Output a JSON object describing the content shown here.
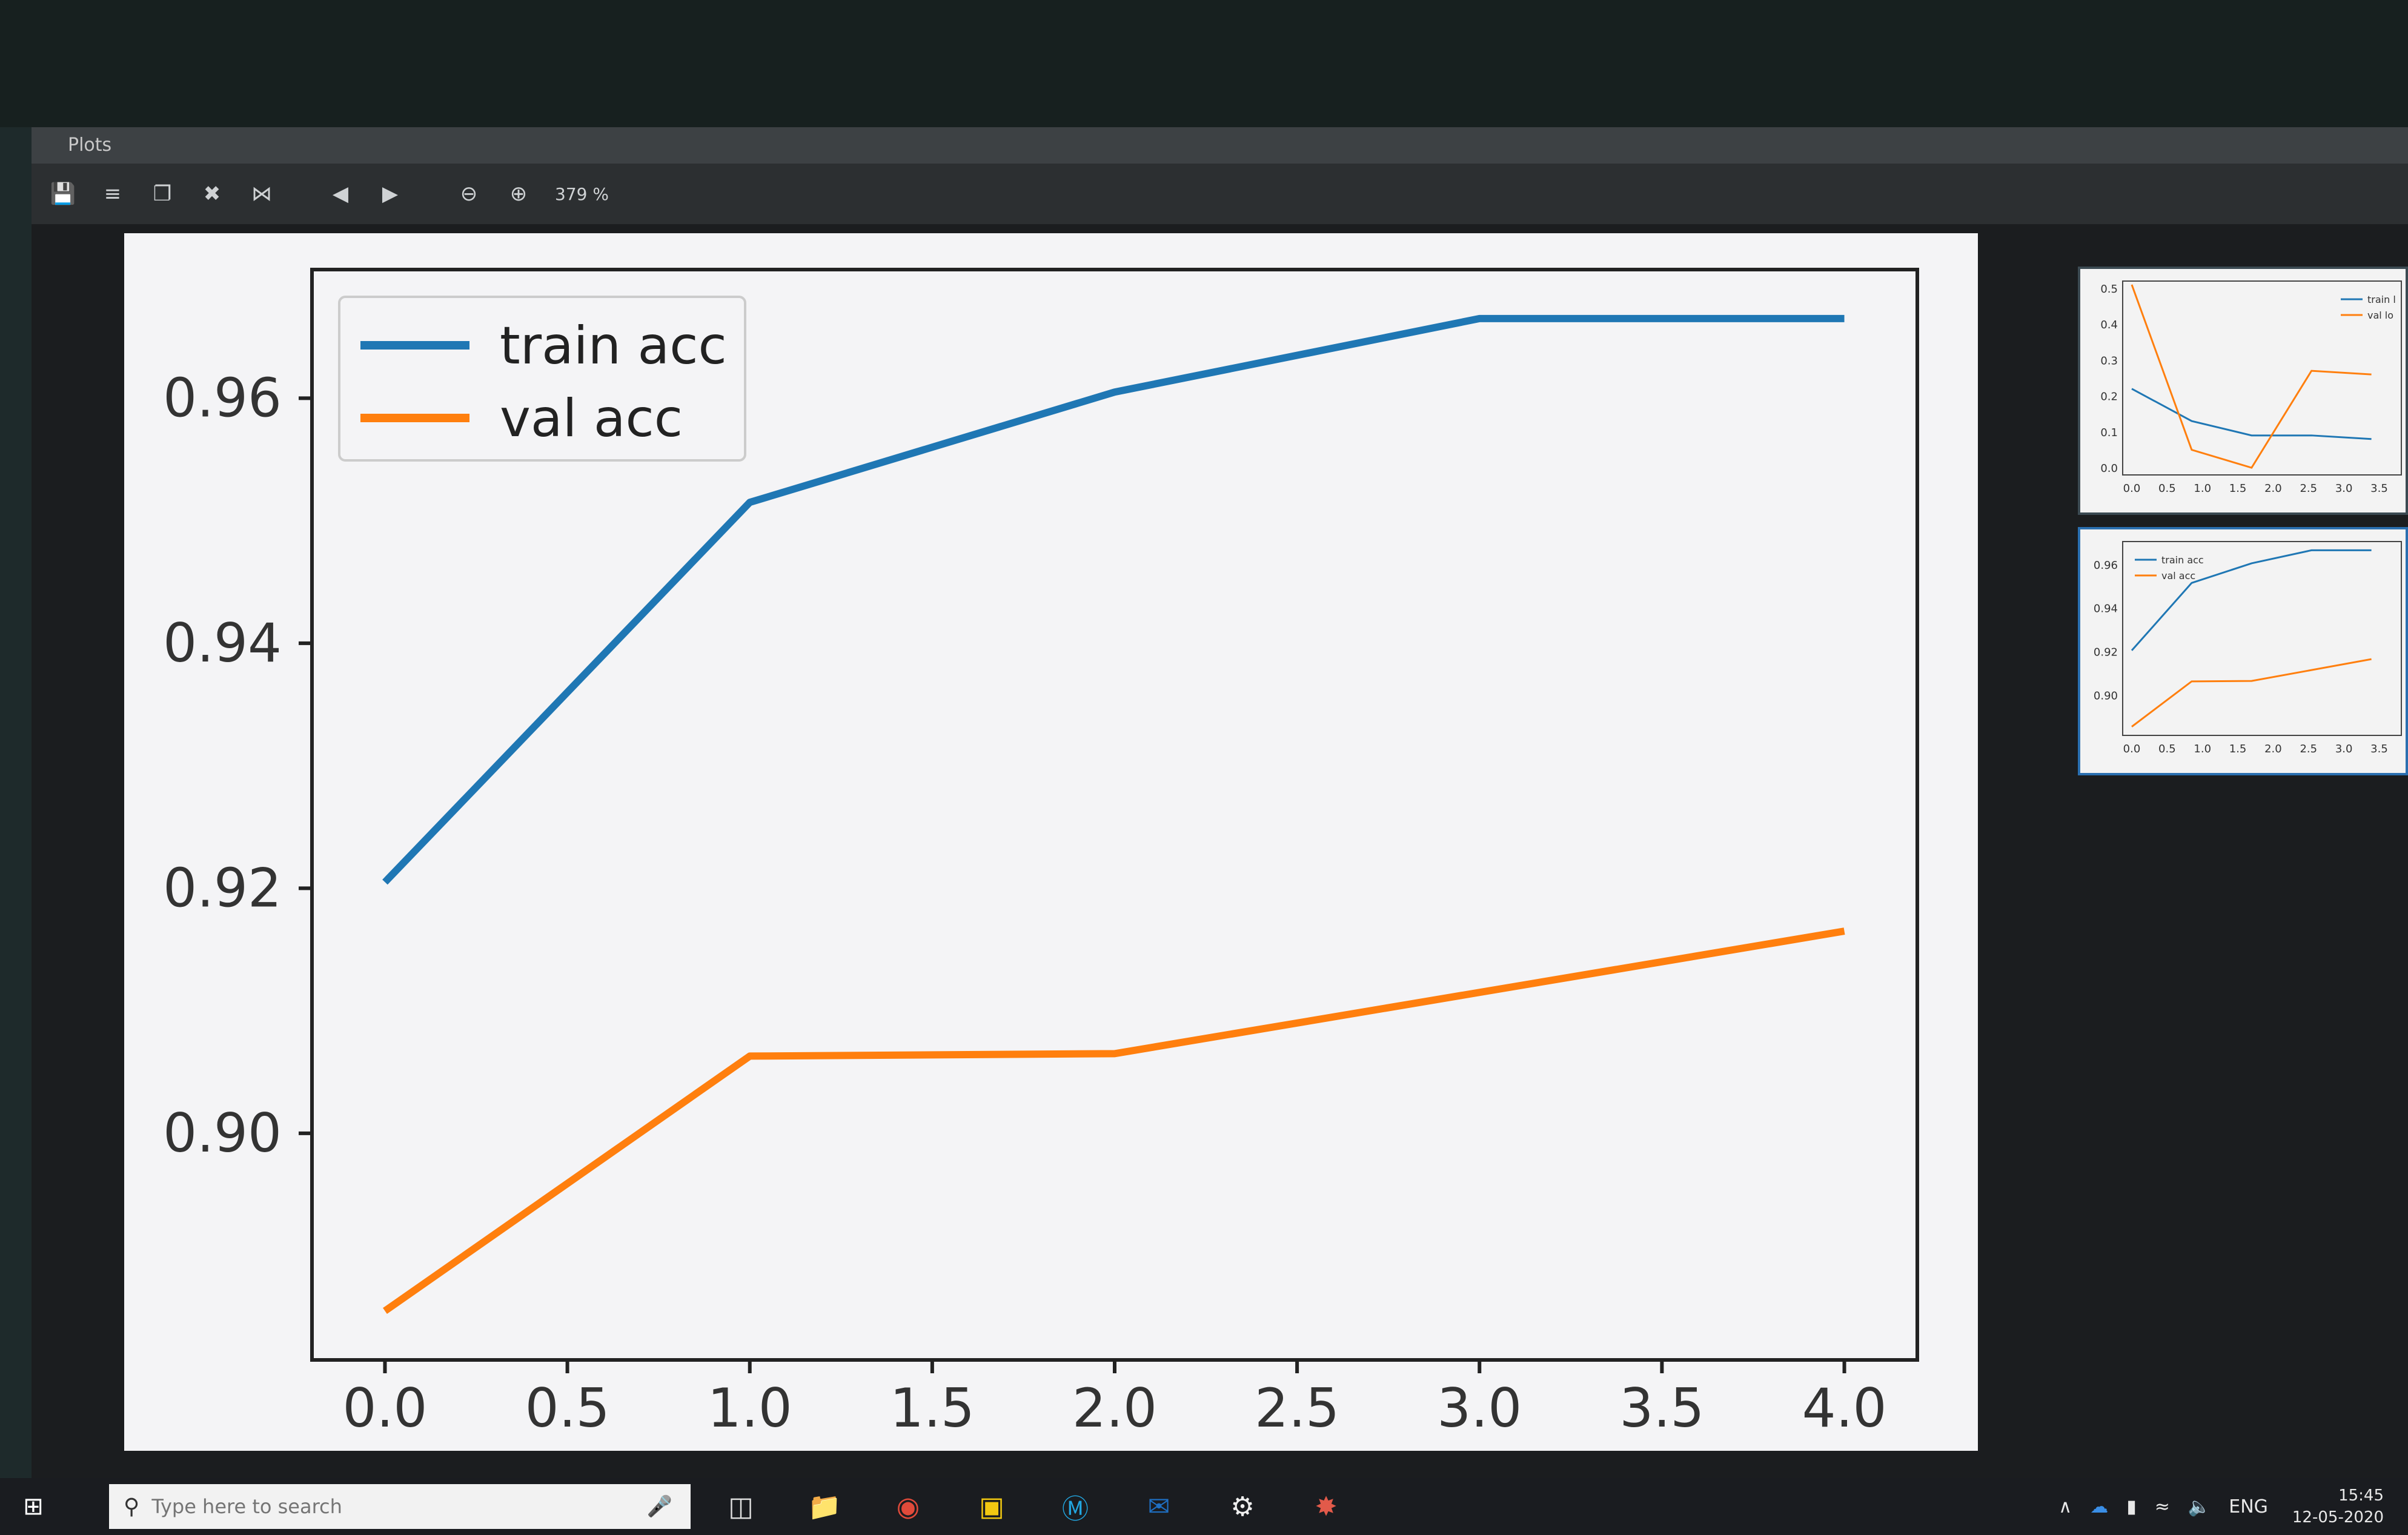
{
  "window": {
    "title": "Plots",
    "toolbar": {
      "save_icon": "floppy-disk-icon",
      "save_all_icon": "save-all-icon",
      "copy_icon": "copy-icon",
      "close_icon": "close-x-icon",
      "close_all_icon": "close-all-icon",
      "prev_icon": "arrow-left-circle-icon",
      "next_icon": "arrow-right-circle-icon",
      "zoom_out_icon": "zoom-out-icon",
      "zoom_in_icon": "zoom-in-icon",
      "zoom_level": "379 %"
    }
  },
  "chart_data": [
    {
      "type": "line",
      "x": [
        0.0,
        1.0,
        2.0,
        3.0,
        4.0
      ],
      "series": [
        {
          "name": "train acc",
          "color": "#1f77b4",
          "values": [
            0.9205,
            0.9515,
            0.9605,
            0.9665,
            0.9665
          ]
        },
        {
          "name": "val acc",
          "color": "#ff7f0e",
          "values": [
            0.8855,
            0.9063,
            0.9065,
            0.9115,
            0.9165
          ]
        }
      ],
      "xticks": [
        "0.0",
        "0.5",
        "1.0",
        "1.5",
        "2.0",
        "2.5",
        "3.0",
        "3.5",
        "4.0"
      ],
      "yticks": [
        "0.90",
        "0.92",
        "0.94",
        "0.96"
      ],
      "xlim": [
        -0.2,
        4.2
      ],
      "ylim": [
        0.8815,
        0.9705
      ],
      "legend": "top-left",
      "grid": false
    }
  ],
  "thumbnails": [
    {
      "type": "line",
      "yticks": [
        "0.0",
        "0.1",
        "0.2",
        "0.3",
        "0.4",
        "0.5"
      ],
      "xticks": [
        "0.0",
        "0.5",
        "1.0",
        "1.5",
        "2.0",
        "2.5",
        "3.0",
        "3.5"
      ],
      "legend_labels": [
        "train l",
        "val lo"
      ],
      "series": [
        {
          "color": "#1f77b4",
          "values": [
            0.22,
            0.13,
            0.09,
            0.09,
            0.08
          ]
        },
        {
          "color": "#ff7f0e",
          "values": [
            0.51,
            0.05,
            0.0,
            0.27,
            0.26
          ]
        }
      ],
      "ylim": [
        -0.02,
        0.52
      ]
    },
    {
      "type": "line",
      "yticks": [
        "0.90",
        "0.92",
        "0.94",
        "0.96"
      ],
      "xticks": [
        "0.0",
        "0.5",
        "1.0",
        "1.5",
        "2.0",
        "2.5",
        "3.0",
        "3.5"
      ],
      "legend_labels": [
        "train acc",
        "val acc"
      ],
      "series": [
        {
          "color": "#1f77b4",
          "values": [
            0.9205,
            0.9515,
            0.9605,
            0.9665,
            0.9665
          ]
        },
        {
          "color": "#ff7f0e",
          "values": [
            0.8855,
            0.9063,
            0.9065,
            0.9115,
            0.9165
          ]
        }
      ],
      "ylim": [
        0.8815,
        0.9705
      ]
    }
  ],
  "taskbar": {
    "start_icon": "windows-logo-icon",
    "search_placeholder": "Type here to search",
    "search_icon": "search-icon",
    "mic_icon": "microphone-icon",
    "apps": [
      "task-view-icon",
      "file-explorer-icon",
      "chrome-icon",
      "sticky-notes-icon",
      "skype-icon",
      "outlook-icon",
      "settings-gear-icon",
      "spyder-icon"
    ],
    "tray": {
      "language": "ENG",
      "time": "15:45",
      "date": "12-05-2020"
    }
  }
}
